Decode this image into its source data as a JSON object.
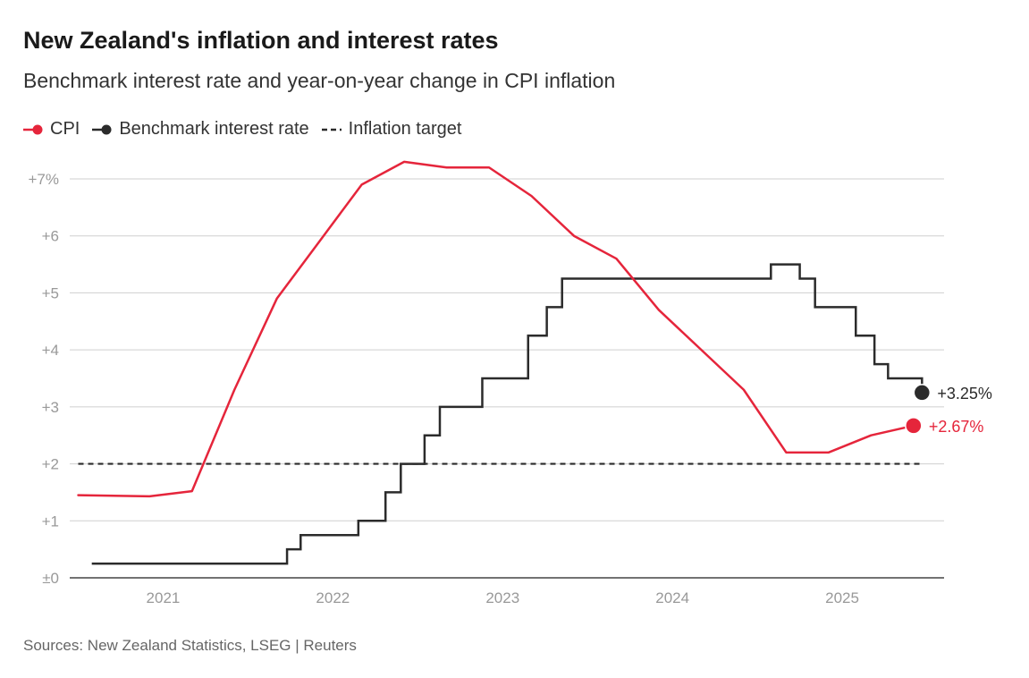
{
  "chart_data": {
    "type": "line",
    "title": "New Zealand's inflation and interest rates",
    "subtitle": "Benchmark interest rate and year-on-year change in CPI inflation",
    "source": "Sources: New Zealand Statistics, LSEG | Reuters",
    "legend": [
      {
        "name": "CPI",
        "style": "solid-dot",
        "color": "#e5253b"
      },
      {
        "name": "Benchmark interest rate",
        "style": "solid-dot",
        "color": "#2b2b2b"
      },
      {
        "name": "Inflation target",
        "style": "dashed",
        "color": "#2b2b2b"
      }
    ],
    "ylim": [
      0,
      7.3
    ],
    "xlim": [
      2020.45,
      2025.6
    ],
    "yticks": [
      {
        "value": 0,
        "label": "±0"
      },
      {
        "value": 1,
        "label": "+1"
      },
      {
        "value": 2,
        "label": "+2"
      },
      {
        "value": 3,
        "label": "+3"
      },
      {
        "value": 4,
        "label": "+4"
      },
      {
        "value": 5,
        "label": "+5"
      },
      {
        "value": 6,
        "label": "+6"
      },
      {
        "value": 7,
        "label": "+7%"
      }
    ],
    "xticks": [
      {
        "value": 2021.0,
        "label": "2021"
      },
      {
        "value": 2022.0,
        "label": "2022"
      },
      {
        "value": 2023.0,
        "label": "2023"
      },
      {
        "value": 2024.0,
        "label": "2024"
      },
      {
        "value": 2025.0,
        "label": "2025"
      }
    ],
    "series": [
      {
        "name": "CPI",
        "color": "#e5253b",
        "kind": "line",
        "x": [
          2020.5,
          2020.92,
          2021.17,
          2021.42,
          2021.67,
          2021.92,
          2022.17,
          2022.42,
          2022.67,
          2022.92,
          2023.17,
          2023.42,
          2023.67,
          2023.92,
          2024.17,
          2024.42,
          2024.67,
          2024.92,
          2025.17,
          2025.42
        ],
        "values": [
          1.45,
          1.43,
          1.52,
          3.3,
          4.9,
          5.9,
          6.9,
          7.3,
          7.2,
          7.2,
          6.7,
          6.0,
          5.6,
          4.7,
          4.0,
          3.3,
          2.2,
          2.2,
          2.5,
          2.67
        ],
        "end_label": "+2.67%"
      },
      {
        "name": "Benchmark interest rate",
        "color": "#2b2b2b",
        "kind": "step",
        "x": [
          2020.58,
          2021.73,
          2021.81,
          2021.9,
          2022.15,
          2022.31,
          2022.4,
          2022.54,
          2022.63,
          2022.8,
          2022.88,
          2023.15,
          2023.26,
          2023.35,
          2024.58,
          2024.75,
          2024.84,
          2025.08,
          2025.19,
          2025.27,
          2025.47
        ],
        "values": [
          0.25,
          0.5,
          0.75,
          0.75,
          1.0,
          1.5,
          2.0,
          2.5,
          3.0,
          3.0,
          3.5,
          4.25,
          4.75,
          5.25,
          5.5,
          5.25,
          4.75,
          4.25,
          3.75,
          3.5,
          3.25
        ],
        "end_label": "+3.25%"
      },
      {
        "name": "Inflation target",
        "color": "#2b2b2b",
        "kind": "dashed",
        "x": [
          2020.5,
          2025.47
        ],
        "values": [
          2,
          2
        ]
      }
    ]
  }
}
